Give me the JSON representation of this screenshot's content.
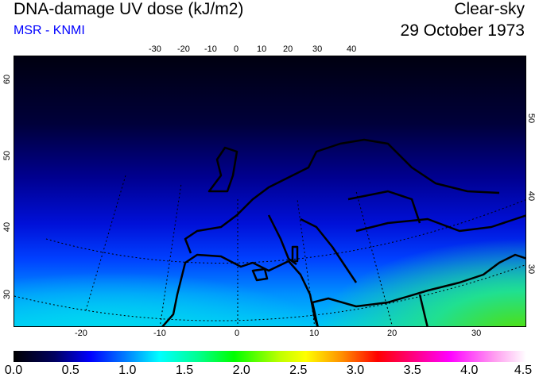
{
  "header": {
    "title": "DNA-damage UV dose (kJ/m2)",
    "source": "MSR - KNMI",
    "condition": "Clear-sky",
    "date": "29 October 1973",
    "source_color": "#0000ff"
  },
  "map": {
    "top_lon_ticks": [
      "-30",
      "-20",
      "-10",
      "0",
      "10",
      "20",
      "30",
      "40"
    ],
    "bottom_lon_ticks": [
      "-20",
      "-10",
      "0",
      "10",
      "20",
      "30"
    ],
    "left_lat_ticks": [
      "60",
      "50",
      "40",
      "30"
    ],
    "right_lat_ticks": [
      "50",
      "40",
      "30"
    ]
  },
  "colorbar": {
    "labels": [
      "0.0",
      "0.5",
      "1.0",
      "1.5",
      "2.0",
      "2.5",
      "3.0",
      "3.5",
      "4.0",
      "4.5"
    ],
    "min": 0.0,
    "max": 4.5
  }
}
